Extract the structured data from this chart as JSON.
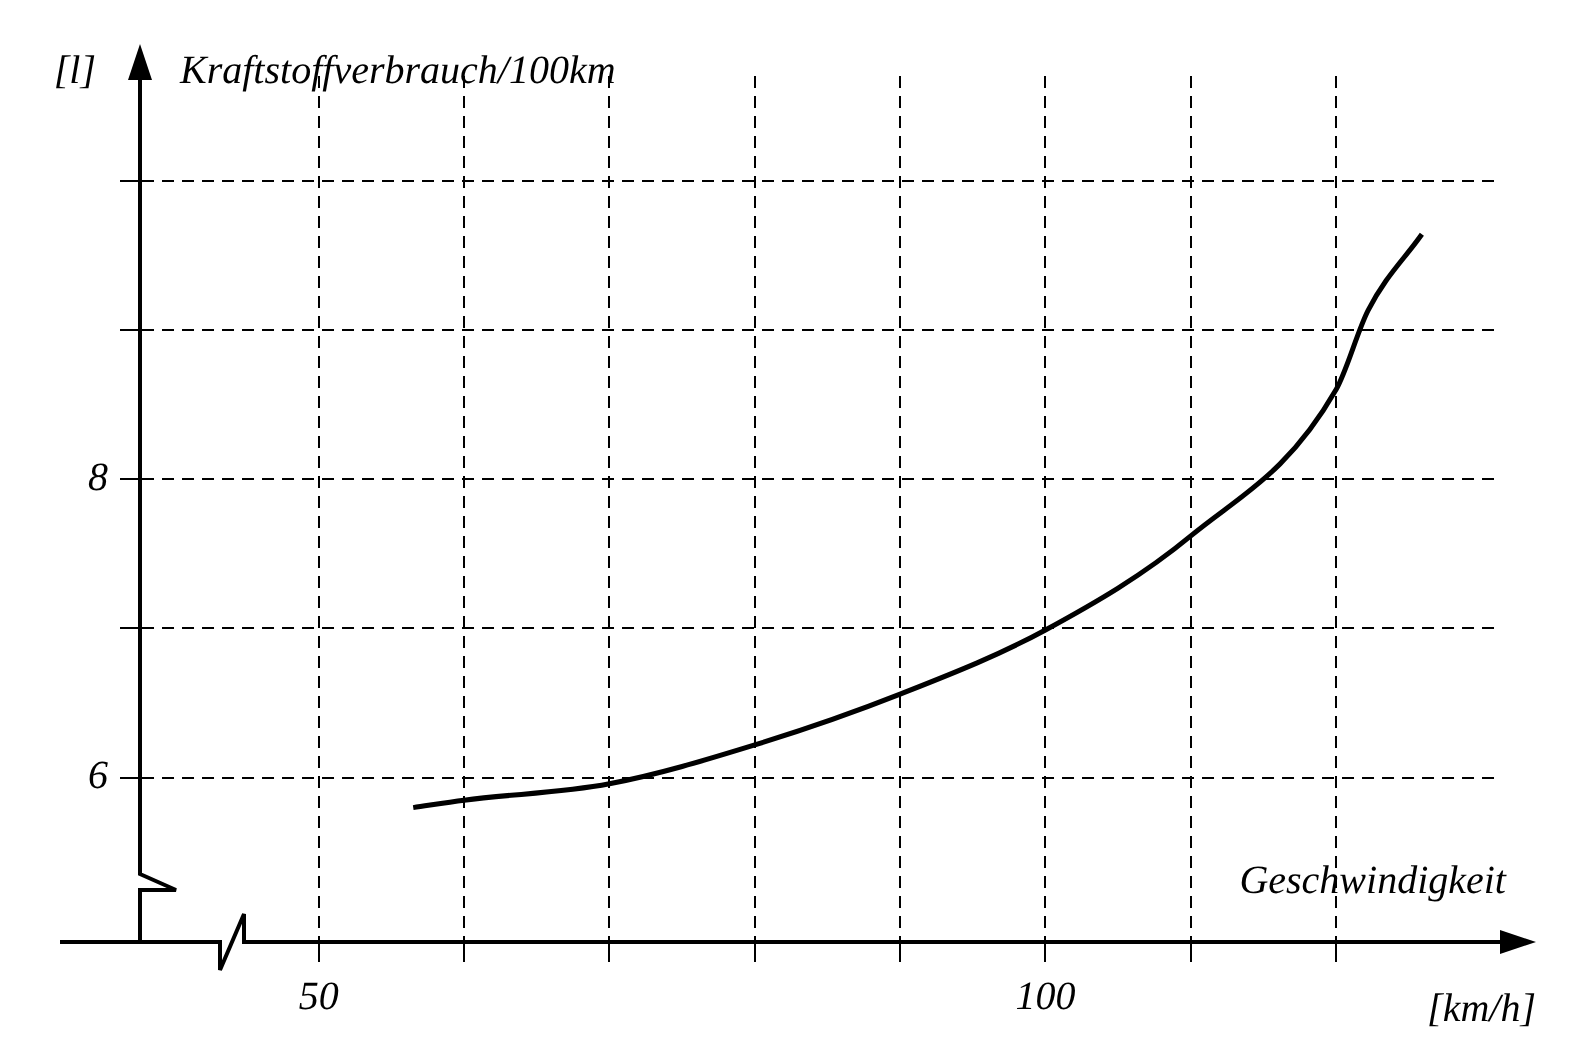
{
  "chart_data": {
    "type": "line",
    "xlabel": "Geschwindigkeit",
    "ylabel": "Kraftstoffverbrauch/100km",
    "annotations": [
      "[l]",
      "[km/h]"
    ],
    "x": [
      56.5,
      60,
      70,
      80,
      90,
      100,
      110,
      120,
      122.2,
      125.9
    ],
    "series": [
      {
        "color": "#000000",
        "values": [
          5.8,
          5.85,
          5.96,
          6.22,
          6.56,
          6.99,
          7.62,
          8.6,
          9.13,
          9.64
        ]
      }
    ],
    "xlim": [
      37.7,
      131
    ],
    "ylim": [
      4.9,
      10.7
    ],
    "xticks": [
      {
        "value": 50,
        "label": "50"
      },
      {
        "value": 60,
        "label": null
      },
      {
        "value": 70,
        "label": null
      },
      {
        "value": 80,
        "label": null
      },
      {
        "value": 90,
        "label": null
      },
      {
        "value": 100,
        "label": "100"
      },
      {
        "value": 110,
        "label": null
      },
      {
        "value": 120,
        "label": null
      }
    ],
    "yticks": [
      {
        "value": 6,
        "label": "6"
      },
      {
        "value": 7,
        "label": null
      },
      {
        "value": 8,
        "label": "8"
      },
      {
        "value": 9,
        "label": null
      },
      {
        "value": 10,
        "label": null
      }
    ],
    "grid": true,
    "legend": false,
    "marker": "none",
    "line_style": "solid"
  }
}
